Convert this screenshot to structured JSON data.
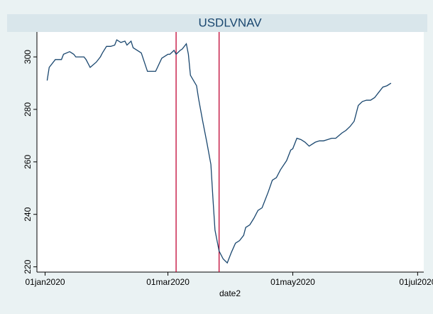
{
  "chart_data": {
    "type": "line",
    "title": "USDLVNAV",
    "xlabel": "date2",
    "x": [
      "2020-01-02",
      "2020-01-03",
      "2020-01-06",
      "2020-01-07",
      "2020-01-09",
      "2020-01-10",
      "2020-01-13",
      "2020-01-15",
      "2020-01-16",
      "2020-01-20",
      "2020-01-21",
      "2020-01-23",
      "2020-01-26",
      "2020-01-28",
      "2020-01-29",
      "2020-01-31",
      "2020-02-02",
      "2020-02-04",
      "2020-02-05",
      "2020-02-07",
      "2020-02-09",
      "2020-02-10",
      "2020-02-12",
      "2020-02-13",
      "2020-02-16",
      "2020-02-17",
      "2020-02-20",
      "2020-02-24",
      "2020-02-27",
      "2020-03-01",
      "2020-03-02",
      "2020-03-04",
      "2020-03-05",
      "2020-03-07",
      "2020-03-08",
      "2020-03-10",
      "2020-03-11",
      "2020-03-12",
      "2020-03-15",
      "2020-03-16",
      "2020-03-18",
      "2020-03-20",
      "2020-03-22",
      "2020-03-23",
      "2020-03-24",
      "2020-03-26",
      "2020-03-28",
      "2020-03-30",
      "2020-04-01",
      "2020-04-03",
      "2020-04-05",
      "2020-04-07",
      "2020-04-08",
      "2020-04-10",
      "2020-04-12",
      "2020-04-14",
      "2020-04-16",
      "2020-04-17",
      "2020-04-19",
      "2020-04-21",
      "2020-04-23",
      "2020-04-25",
      "2020-04-28",
      "2020-04-30",
      "2020-05-01",
      "2020-05-03",
      "2020-05-05",
      "2020-05-07",
      "2020-05-09",
      "2020-05-12",
      "2020-05-14",
      "2020-05-16",
      "2020-05-18",
      "2020-05-20",
      "2020-05-22",
      "2020-05-25",
      "2020-05-27",
      "2020-05-29",
      "2020-05-31",
      "2020-06-02",
      "2020-06-04",
      "2020-06-06",
      "2020-06-08",
      "2020-06-10",
      "2020-06-12",
      "2020-06-14",
      "2020-06-16",
      "2020-06-18"
    ],
    "series": [
      {
        "name": "USDLVNAV",
        "color": "#1a476f",
        "values": [
          291,
          296,
          299,
          299,
          299,
          301,
          302,
          301,
          300,
          300,
          299,
          296,
          298,
          300,
          301.5,
          304,
          304,
          304.5,
          306.5,
          305.5,
          306,
          304.5,
          306,
          303.5,
          302,
          301.5,
          294.5,
          294.5,
          299.5,
          301,
          301,
          302.5,
          301,
          302.5,
          303,
          305,
          301,
          293,
          289,
          284,
          275.5,
          267.5,
          259,
          246,
          234,
          226,
          223,
          221.5,
          225.5,
          229,
          230,
          232,
          235,
          236,
          238.5,
          241.5,
          242.5,
          244.5,
          248.5,
          253,
          254,
          257,
          260.5,
          264.5,
          265,
          269,
          268.5,
          267.5,
          266,
          267.5,
          268,
          268,
          268.5,
          269,
          269,
          271,
          272,
          273.5,
          275.5,
          281.5,
          283,
          283.5,
          283.5,
          284.5,
          286.5,
          288.5,
          289,
          290
        ]
      }
    ],
    "vlines": [
      "2020-03-05",
      "2020-03-26"
    ],
    "vline_color": "#c10534",
    "xlim": [
      "2019-12-28",
      "2020-07-04"
    ],
    "xticks": [
      {
        "value": "2020-01-01",
        "label": "01jan2020"
      },
      {
        "value": "2020-03-01",
        "label": "01mar2020"
      },
      {
        "value": "2020-05-01",
        "label": "01may2020"
      },
      {
        "value": "2020-07-01",
        "label": "01jul2020"
      }
    ],
    "ylim": [
      218,
      309.5
    ],
    "yticks": [
      220,
      240,
      260,
      280,
      300
    ]
  }
}
